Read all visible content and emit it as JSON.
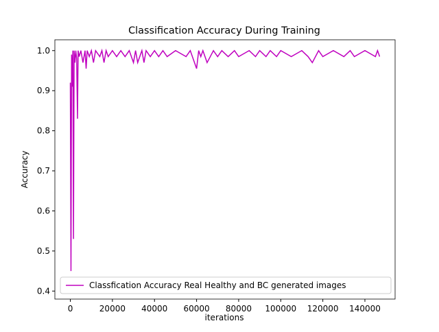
{
  "chart_data": {
    "type": "line",
    "title": "Classification Accuracy During Training",
    "xlabel": "iterations",
    "ylabel": "Accuracy",
    "x": [
      0,
      300,
      600,
      900,
      1200,
      1500,
      1800,
      2200,
      2600,
      3000,
      3400,
      3700,
      4200,
      5000,
      6000,
      7000,
      7500,
      8000,
      9000,
      10000,
      11000,
      12000,
      14000,
      15000,
      16000,
      17000,
      18000,
      20000,
      22000,
      24000,
      26000,
      28000,
      30000,
      31000,
      32000,
      34000,
      35000,
      36000,
      38000,
      40000,
      42000,
      44000,
      46000,
      50000,
      55000,
      57000,
      60000,
      61000,
      62000,
      63000,
      65000,
      68000,
      70000,
      72000,
      75000,
      78000,
      80000,
      85000,
      88000,
      90000,
      93000,
      95000,
      98000,
      100000,
      105000,
      110000,
      113000,
      115000,
      118000,
      120000,
      125000,
      130000,
      133000,
      135000,
      140000,
      145000,
      146000,
      147000
    ],
    "series": [
      {
        "name": "Classfication Accuracy Real Healthy and BC generated images",
        "color": "#bf00bf",
        "values": [
          0.92,
          0.45,
          0.99,
          0.91,
          1.0,
          0.53,
          1.0,
          0.97,
          1.0,
          0.98,
          0.83,
          1.0,
          0.985,
          1.0,
          0.97,
          1.0,
          0.955,
          1.0,
          0.985,
          1.0,
          0.97,
          1.0,
          0.985,
          1.0,
          0.97,
          1.0,
          0.985,
          1.0,
          0.985,
          1.0,
          0.985,
          1.0,
          0.97,
          1.0,
          0.97,
          1.0,
          0.97,
          1.0,
          0.985,
          1.0,
          0.985,
          1.0,
          0.985,
          1.0,
          0.985,
          1.0,
          0.955,
          1.0,
          0.985,
          1.0,
          0.97,
          1.0,
          0.985,
          1.0,
          0.985,
          1.0,
          0.985,
          1.0,
          0.985,
          1.0,
          0.985,
          1.0,
          0.985,
          1.0,
          0.985,
          1.0,
          0.985,
          0.97,
          1.0,
          0.985,
          1.0,
          0.985,
          1.0,
          0.985,
          1.0,
          0.985,
          1.0,
          0.985
        ]
      }
    ],
    "xlim": [
      -7350,
      154350
    ],
    "xticks": [
      0,
      20000,
      40000,
      60000,
      80000,
      100000,
      120000,
      140000
    ],
    "ylim": [
      0.38,
      1.027
    ],
    "yticks": [
      0.4,
      0.5,
      0.6,
      0.7,
      0.8,
      0.9,
      {
        "value": 1,
        "label": "1.0"
      }
    ],
    "legend": "lower left"
  }
}
